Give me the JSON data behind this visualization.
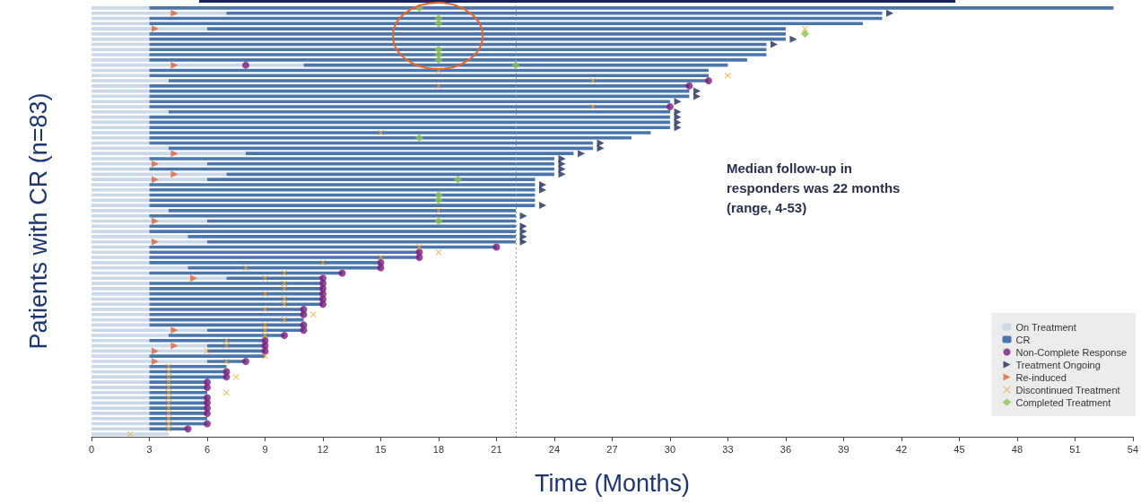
{
  "chart_data": {
    "type": "bar",
    "orientation": "horizontal",
    "stacked": true,
    "xlabel": "Time (Months)",
    "ylabel": "Patients with CR (n=83)",
    "categories": [
      null,
      null,
      null,
      null,
      null,
      null,
      null,
      null,
      null,
      null,
      null,
      null,
      null,
      null,
      null,
      null,
      null,
      null,
      null,
      null,
      null,
      null,
      null,
      null,
      null,
      null,
      null,
      null,
      null,
      null,
      null,
      null,
      null,
      null,
      null,
      null,
      null,
      null,
      null,
      null,
      null,
      null,
      null,
      null,
      null,
      null,
      null,
      null,
      null,
      null,
      null,
      null,
      null,
      null,
      null,
      null,
      null,
      null,
      null,
      null,
      null,
      null,
      null,
      null,
      null,
      null,
      null,
      null,
      null,
      null,
      null,
      null,
      null,
      null,
      null,
      null,
      null,
      null,
      null,
      null,
      null,
      null,
      null
    ],
    "xlim": [
      0,
      54
    ],
    "xticks": [
      0,
      3,
      6,
      9,
      12,
      15,
      18,
      21,
      24,
      27,
      30,
      33,
      36,
      39,
      42,
      45,
      48,
      51,
      54
    ],
    "grid": false,
    "legend": "bottom right",
    "tick_labels": "x",
    "ref_lines": [
      {
        "axis": "x",
        "value": 22,
        "color": "#9a9a9a",
        "line_style": "dotted"
      }
    ],
    "annotations": [
      "Median follow-up in\nresponders was 22 months\n(range, 4-53)"
    ],
    "series": [
      {
        "name": "On Treatment",
        "color": "#cbd8e8",
        "values": [
          3,
          7,
          3,
          3,
          6,
          3,
          3,
          3,
          3,
          3,
          3,
          11,
          3,
          3,
          4,
          3,
          3,
          3,
          3,
          3,
          4,
          3,
          3,
          3,
          3,
          3,
          3,
          4,
          8,
          3,
          6,
          3,
          7,
          6,
          3,
          3,
          3,
          3,
          3,
          4,
          3,
          6,
          3,
          3,
          5,
          6,
          3,
          3,
          3,
          3,
          5,
          3,
          7,
          3,
          3,
          3,
          3,
          3,
          3,
          3,
          3,
          3,
          6,
          4,
          3,
          6,
          6,
          3,
          6,
          3,
          3,
          3,
          3,
          3,
          3,
          3,
          3,
          3,
          3,
          3,
          3,
          3,
          4
        ]
      },
      {
        "name": "CR",
        "color": "#4a76ab",
        "values": [
          50,
          34,
          38,
          37,
          30,
          33,
          33,
          32,
          32,
          32,
          31,
          22,
          29,
          29,
          28,
          28,
          28,
          28,
          27,
          27,
          26,
          27,
          27,
          27,
          26,
          25,
          23,
          22,
          17,
          21,
          18,
          21,
          17,
          17,
          20,
          20,
          20,
          20,
          20,
          18,
          19,
          16,
          19,
          19,
          17,
          16,
          18,
          14,
          14,
          12,
          10,
          10,
          5,
          9,
          9,
          9,
          9,
          9,
          8,
          8,
          8,
          8,
          5,
          6,
          6,
          3,
          3,
          6,
          2,
          4,
          4,
          4,
          3,
          3,
          3,
          3,
          3,
          3,
          3,
          3,
          3,
          2,
          null
        ]
      },
      {
        "name": "Non-Complete Response",
        "type": "scatter",
        "marker": "circle",
        "color": "#7a1b7e",
        "values": [
          null,
          null,
          null,
          null,
          null,
          null,
          null,
          null,
          null,
          null,
          null,
          8,
          null,
          null,
          32,
          31,
          null,
          null,
          null,
          30,
          null,
          null,
          null,
          null,
          null,
          null,
          null,
          null,
          null,
          null,
          null,
          null,
          null,
          null,
          null,
          null,
          null,
          null,
          null,
          null,
          null,
          null,
          null,
          null,
          null,
          null,
          21,
          17,
          17,
          15,
          15,
          13,
          12,
          12,
          12,
          12,
          12,
          12,
          11,
          11,
          null,
          11,
          11,
          10,
          9,
          9,
          9,
          null,
          8,
          null,
          7,
          7,
          6,
          6,
          null,
          6,
          6,
          6,
          6,
          null,
          6,
          5,
          null
        ]
      },
      {
        "name": "Treatment Ongoing",
        "type": "scatter",
        "marker": "triangle",
        "color": "#1e2a56",
        "values": [
          null,
          41.4,
          null,
          null,
          null,
          null,
          36.4,
          35.4,
          null,
          null,
          null,
          null,
          null,
          null,
          null,
          null,
          31.4,
          31.4,
          30.4,
          null,
          30.4,
          30.4,
          30.4,
          30.4,
          null,
          null,
          26.4,
          26.4,
          25.4,
          24.4,
          24.4,
          24.4,
          24.4,
          null,
          23.4,
          23.4,
          null,
          null,
          23.4,
          null,
          22.4,
          null,
          22.4,
          22.4,
          22.4,
          22.4,
          null,
          null,
          null,
          null,
          null,
          null,
          null,
          null,
          null,
          null,
          null,
          null,
          null,
          null,
          null,
          null,
          null,
          null,
          null,
          null,
          null,
          null,
          null,
          null,
          null,
          null,
          null,
          null,
          null,
          null,
          null,
          null,
          null,
          null,
          null,
          null,
          null
        ]
      },
      {
        "name": "Re-induced",
        "type": "scatter",
        "marker": "triangle",
        "color": "#e2643a",
        "values": [
          null,
          4.3,
          null,
          null,
          3.3,
          null,
          null,
          null,
          null,
          null,
          null,
          4.3,
          null,
          null,
          null,
          null,
          null,
          null,
          null,
          null,
          null,
          null,
          null,
          null,
          null,
          null,
          null,
          null,
          4.3,
          null,
          3.3,
          null,
          4.3,
          3.3,
          null,
          null,
          null,
          null,
          null,
          null,
          null,
          3.3,
          null,
          null,
          null,
          3.3,
          null,
          null,
          null,
          null,
          null,
          null,
          5.3,
          null,
          null,
          null,
          null,
          null,
          null,
          null,
          null,
          null,
          4.3,
          null,
          null,
          4.3,
          3.3,
          null,
          3.3,
          null,
          null,
          null,
          null,
          null,
          null,
          null,
          null,
          null,
          null,
          null,
          null,
          null,
          null
        ]
      },
      {
        "name": "Discontinued Treatment",
        "type": "scatter",
        "marker": "cross",
        "color": "#f0a733",
        "values": [
          null,
          null,
          null,
          null,
          37,
          null,
          null,
          null,
          null,
          null,
          null,
          null,
          18,
          33,
          26,
          18,
          null,
          null,
          null,
          26,
          null,
          null,
          null,
          null,
          15,
          null,
          null,
          null,
          null,
          null,
          null,
          null,
          null,
          null,
          null,
          null,
          null,
          null,
          null,
          18,
          null,
          null,
          null,
          null,
          null,
          null,
          17,
          18,
          15,
          12,
          8,
          10,
          9,
          10,
          10,
          9,
          10,
          10,
          9,
          11.5,
          10,
          9,
          9,
          9,
          7,
          7,
          6,
          9,
          7,
          4,
          4,
          4,
          4,
          4,
          4,
          4,
          4,
          4,
          4,
          4,
          4,
          4,
          2
        ]
      },
      {
        "type": "scatter",
        "marker": "cross",
        "color": "#f0a733",
        "values": [
          null,
          null,
          null,
          null,
          null,
          null,
          null,
          null,
          null,
          null,
          null,
          null,
          null,
          null,
          null,
          null,
          null,
          null,
          null,
          null,
          null,
          null,
          null,
          null,
          null,
          null,
          null,
          null,
          null,
          null,
          null,
          null,
          null,
          null,
          null,
          null,
          null,
          null,
          null,
          null,
          null,
          null,
          null,
          null,
          null,
          null,
          null,
          null,
          null,
          null,
          null,
          null,
          null,
          null,
          null,
          null,
          null,
          null,
          null,
          null,
          null,
          null,
          null,
          null,
          null,
          null,
          null,
          null,
          null,
          null,
          null,
          7.5,
          null,
          null,
          7,
          null,
          null,
          null,
          null,
          null,
          null,
          null,
          null
        ]
      },
      {
        "name": "Completed Treatment",
        "type": "scatter",
        "marker": "diamond",
        "color": "#8cc152",
        "values": [
          17,
          null,
          18,
          18,
          null,
          37,
          null,
          null,
          18,
          18,
          18,
          22,
          null,
          null,
          null,
          null,
          null,
          null,
          null,
          null,
          null,
          null,
          null,
          null,
          null,
          17,
          null,
          null,
          null,
          null,
          null,
          null,
          null,
          19,
          null,
          null,
          18,
          18,
          null,
          null,
          null,
          18,
          null,
          null,
          null,
          null,
          null,
          null,
          null,
          null,
          null,
          null,
          null,
          null,
          null,
          null,
          null,
          null,
          null,
          null,
          null,
          null,
          null,
          null,
          null,
          null,
          null,
          null,
          null,
          null,
          null,
          null,
          null,
          null,
          null,
          null,
          null,
          null,
          null,
          null,
          null,
          null,
          null
        ]
      }
    ]
  }
}
